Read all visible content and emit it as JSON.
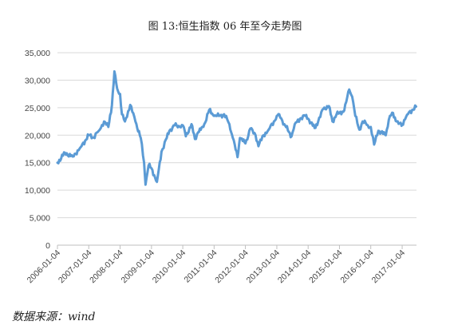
{
  "source_text": "数据来源：wind",
  "colors": {
    "line": "#5b9bd5",
    "grid": "#d9d9d9",
    "axis": "#bfbfbf"
  },
  "chart_data": {
    "type": "line",
    "title": "图 13:恒生指数 06 年至今走势图",
    "xlabel": "",
    "ylabel": "",
    "ylim": [
      0,
      35000
    ],
    "y_ticks": [
      "0",
      "5,000",
      "10,000",
      "15,000",
      "20,000",
      "25,000",
      "30,000",
      "35,000"
    ],
    "x_ticks": [
      "2006-01-04",
      "2007-01-04",
      "2008-01-04",
      "2009-01-04",
      "2010-01-04",
      "2011-01-04",
      "2012-01-04",
      "2013-01-04",
      "2014-01-04",
      "2015-01-04",
      "2016-01-04",
      "2017-01-04"
    ],
    "grid": true,
    "legend": "none",
    "series": [
      {
        "x": [
          "2006-01-04",
          "2006-04-01",
          "2006-07-01",
          "2006-10-01",
          "2007-01-04",
          "2007-03-01",
          "2007-05-01",
          "2007-07-01",
          "2007-08-20",
          "2007-10-01",
          "2007-10-30",
          "2007-12-01",
          "2008-01-04",
          "2008-01-25",
          "2008-03-01",
          "2008-05-01",
          "2008-07-01",
          "2008-09-01",
          "2008-10-10",
          "2008-10-27",
          "2008-12-01",
          "2009-01-04",
          "2009-03-09",
          "2009-05-01",
          "2009-07-01",
          "2009-08-01",
          "2009-10-01",
          "2009-12-01",
          "2010-01-04",
          "2010-02-08",
          "2010-04-15",
          "2010-05-25",
          "2010-07-01",
          "2010-09-01",
          "2010-11-08",
          "2011-01-04",
          "2011-03-01",
          "2011-05-01",
          "2011-07-01",
          "2011-08-10",
          "2011-10-04",
          "2011-11-01",
          "2012-01-04",
          "2012-03-01",
          "2012-05-01",
          "2012-06-04",
          "2012-08-01",
          "2012-10-01",
          "2012-12-01",
          "2013-01-04",
          "2013-02-01",
          "2013-04-01",
          "2013-06-25",
          "2013-08-01",
          "2013-10-01",
          "2013-12-01",
          "2014-01-04",
          "2014-03-20",
          "2014-05-01",
          "2014-07-01",
          "2014-09-03",
          "2014-10-15",
          "2014-12-01",
          "2015-01-04",
          "2015-03-01",
          "2015-04-28",
          "2015-06-01",
          "2015-07-08",
          "2015-08-24",
          "2015-10-01",
          "2015-12-01",
          "2016-01-04",
          "2016-02-12",
          "2016-04-01",
          "2016-06-27",
          "2016-08-01",
          "2016-09-09",
          "2016-11-01",
          "2016-12-28",
          "2017-01-04",
          "2017-03-01",
          "2017-05-01",
          "2017-06-15"
        ],
        "values": [
          15000,
          16800,
          16100,
          17800,
          20000,
          19600,
          20800,
          22500,
          21500,
          25500,
          31600,
          28500,
          27500,
          23800,
          22500,
          25500,
          22500,
          19500,
          15000,
          11000,
          14500,
          14000,
          11500,
          17000,
          19500,
          20800,
          21800,
          21500,
          21800,
          19800,
          22000,
          19300,
          20500,
          21500,
          24600,
          23500,
          23500,
          23800,
          22000,
          19500,
          16000,
          19500,
          18500,
          21200,
          20000,
          18000,
          20000,
          21000,
          22500,
          23500,
          23800,
          22000,
          19800,
          22000,
          23000,
          23500,
          23000,
          21300,
          22500,
          24800,
          25300,
          22500,
          23800,
          24000,
          24500,
          28300,
          27000,
          23500,
          21000,
          22500,
          21800,
          21500,
          18300,
          20800,
          20000,
          22800,
          24100,
          22500,
          21700,
          22000,
          23700,
          24600,
          25200
        ]
      }
    ]
  }
}
